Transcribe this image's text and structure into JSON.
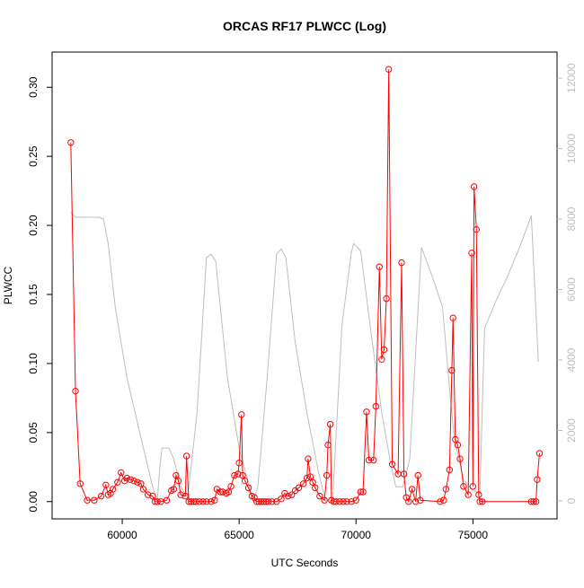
{
  "chart_data": {
    "type": "line",
    "title": "ORCAS RF17 PLWCC (Log)",
    "xlabel": "UTC Seconds",
    "ylabel": "PLWCC",
    "xlim": [
      57000,
      78600
    ],
    "xticks": [
      60000,
      65000,
      70000,
      75000
    ],
    "ylim": [
      -0.0125,
      0.3255
    ],
    "yticks": [
      {
        "value": 0,
        "label": "0.00"
      },
      {
        "value": 0.05,
        "label": "0.05"
      },
      {
        "value": 0.1,
        "label": "0.10"
      },
      {
        "value": 0.15,
        "label": "0.15"
      },
      {
        "value": 0.2,
        "label": "0.20"
      },
      {
        "value": 0.25,
        "label": "0.25"
      },
      {
        "value": 0.3,
        "label": "0.30"
      }
    ],
    "y2lim": [
      -510,
      12740
    ],
    "y2ticks": [
      0,
      2000,
      4000,
      6000,
      8000,
      10000,
      12000
    ],
    "y2color": "#bebebe",
    "series": [
      {
        "color": "#ff0000",
        "markers": true,
        "x": [
          57800,
          58000,
          58200,
          58500,
          58800,
          59100,
          59300,
          59400,
          59500,
          59600,
          59800,
          59950,
          60100,
          60200,
          60350,
          60500,
          60650,
          60800,
          60900,
          61100,
          61300,
          61400,
          61500,
          61650,
          61900,
          62100,
          62200,
          62300,
          62400,
          62500,
          62700,
          62750,
          62850,
          62950,
          63050,
          63150,
          63300,
          63450,
          63600,
          63800,
          63950,
          64050,
          64200,
          64300,
          64450,
          64550,
          64650,
          64800,
          64950,
          65000,
          65100,
          65150,
          65250,
          65400,
          65550,
          65650,
          65750,
          65850,
          65950,
          66050,
          66150,
          66250,
          66400,
          66600,
          66800,
          66950,
          67100,
          67250,
          67400,
          67550,
          67750,
          67900,
          67950,
          68050,
          68150,
          68250,
          68450,
          68650,
          68750,
          68800,
          68900,
          68950,
          69050,
          69150,
          69300,
          69450,
          69600,
          69800,
          70000,
          70200,
          70300,
          70450,
          70550,
          70750,
          70850,
          71000,
          71100,
          71200,
          71300,
          71400,
          71550,
          71800,
          71950,
          72050,
          72150,
          72250,
          72400,
          72550,
          72650,
          72750,
          73600,
          73750,
          73850,
          74000,
          74100,
          74150,
          74250,
          74350,
          74450,
          74600,
          74800,
          74950,
          75000,
          75050,
          75150,
          75250,
          75300,
          75400,
          77500,
          77600,
          77700,
          77750,
          77850
        ],
        "values": [
          0.26,
          0.08,
          0.013,
          0.001,
          0.001,
          0.004,
          0.012,
          0.005,
          0.006,
          0.009,
          0.014,
          0.021,
          0.015,
          0.017,
          0.016,
          0.015,
          0.014,
          0.013,
          0.009,
          0.005,
          0.004,
          0,
          0,
          0,
          0.001,
          0.008,
          0.009,
          0.019,
          0.015,
          0.005,
          0.004,
          0.033,
          0,
          0,
          0,
          0,
          0,
          0,
          0,
          0,
          0.001,
          0.009,
          0.007,
          0.007,
          0.006,
          0.007,
          0.011,
          0.019,
          0.02,
          0.028,
          0.063,
          0.019,
          0.015,
          0.01,
          0.004,
          0.003,
          0,
          0,
          0,
          0,
          0,
          0,
          0,
          0,
          0.002,
          0.006,
          0.004,
          0.005,
          0.008,
          0.01,
          0.013,
          0.017,
          0.031,
          0.018,
          0.014,
          0.01,
          0.004,
          0.001,
          0.019,
          0.041,
          0.056,
          0.001,
          0,
          0,
          0,
          0,
          0,
          0,
          0.001,
          0.007,
          0.007,
          0.065,
          0.03,
          0.03,
          0.069,
          0.17,
          0.103,
          0.11,
          0.147,
          0.313,
          0.027,
          0.02,
          0.173,
          0.02,
          0.003,
          0,
          0.009,
          0,
          0.019,
          0.001,
          0,
          0.001,
          0.009,
          0.023,
          0.095,
          0.133,
          0.045,
          0.041,
          0.031,
          0.011,
          0.005,
          0.18,
          0.011,
          0.228,
          0.197,
          0.005,
          0,
          0,
          0,
          0,
          0,
          0.016,
          0.035
        ]
      },
      {
        "color": "#bebebe",
        "axis": "y2",
        "markers": false,
        "x": [
          57800,
          58000,
          59000,
          59200,
          59400,
          59700,
          60200,
          60800,
          61300,
          61500,
          61600,
          61700,
          62000,
          62200,
          62500,
          62800,
          63200,
          63600,
          63800,
          64000,
          64500,
          65000,
          65600,
          65800,
          66200,
          66600,
          66800,
          67000,
          67400,
          67900,
          68400,
          68700,
          69000,
          69400,
          69800,
          69900,
          70200,
          70600,
          71100,
          71500,
          71700,
          72000,
          72300,
          72800,
          73300,
          73700,
          74000,
          74200,
          74600,
          75000,
          75300,
          75500,
          76000,
          76500,
          77000,
          77500,
          77800
        ],
        "values": [
          8200,
          8050,
          8050,
          8000,
          7300,
          5500,
          3500,
          1800,
          400,
          0,
          900,
          1500,
          1500,
          1200,
          400,
          100,
          2500,
          6900,
          7000,
          6800,
          3500,
          1500,
          0,
          400,
          3500,
          7000,
          7150,
          6900,
          4500,
          2500,
          800,
          0,
          0,
          5000,
          7050,
          7300,
          7100,
          5000,
          2500,
          1000,
          400,
          400,
          1200,
          7200,
          6300,
          5500,
          3200,
          1800,
          600,
          300,
          200,
          4900,
          5700,
          6400,
          7200,
          8100,
          3950
        ]
      }
    ]
  }
}
